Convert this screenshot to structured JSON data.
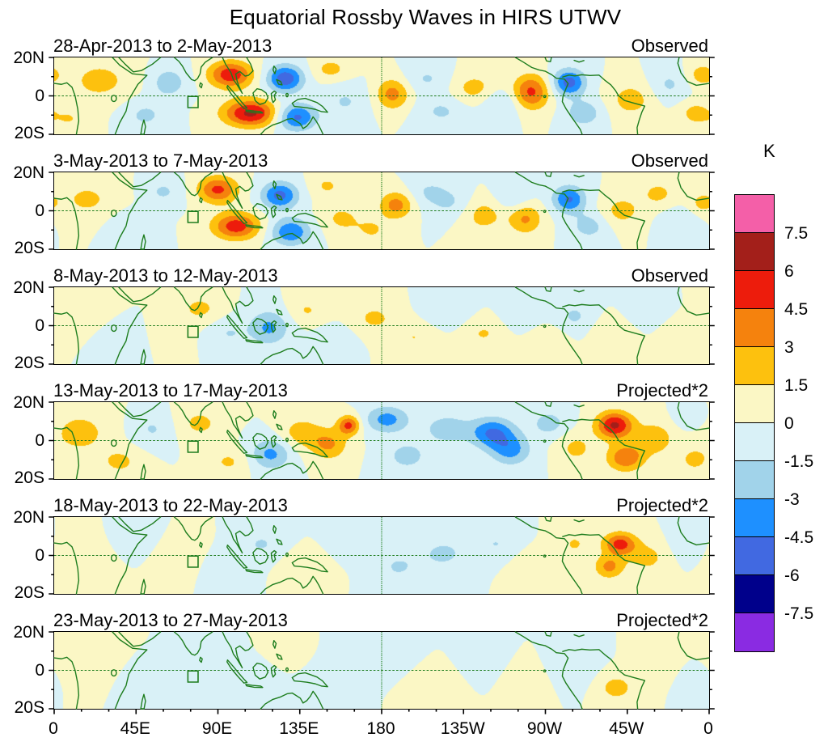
{
  "chart_data": {
    "type": "heatmap",
    "title": "Equatorial Rossby Waves in HIRS UTWV",
    "units_label": "K",
    "x_tick_labels": [
      "0",
      "45E",
      "90E",
      "135E",
      "180",
      "135W",
      "90W",
      "45W",
      "0"
    ],
    "y_tick_labels": [
      "20N",
      "0",
      "20S"
    ],
    "lon_range_deg": [
      0,
      360
    ],
    "lat_range_deg": [
      -20,
      20
    ],
    "contour_levels_K": [
      -7.5,
      -6,
      -4.5,
      -3,
      -1.5,
      0,
      1.5,
      3,
      4.5,
      6,
      7.5
    ],
    "colorbar_tick_labels": [
      "7.5",
      "6",
      "4.5",
      "3",
      "1.5",
      "0",
      "-1.5",
      "-3",
      "-4.5",
      "-6",
      "-7.5"
    ],
    "palette_neg_to_pos": [
      "#8a2be2",
      "#00008b",
      "#4169e1",
      "#1e90ff",
      "#a1d3ea",
      "#d9f1f7",
      "#fbf7c5",
      "#fdc10e",
      "#f5820d",
      "#ed1c0c",
      "#a31f1a",
      "#f45fa8"
    ],
    "colors": {
      "coastline_green": "#1e7d1e",
      "axis_black": "#000000",
      "background": "#ffffff"
    },
    "anomaly_format": "[lon_deg_east, lat_deg, lon_radius_deg, lat_radius_deg, amplitude_K]",
    "panels": [
      {
        "label": "28-Apr-2013 to 2-May-2013",
        "tag": "Observed",
        "anomalies": [
          [
            25,
            8,
            18,
            11,
            2.0
          ],
          [
            8,
            -12,
            12,
            8,
            1.5
          ],
          [
            50,
            -10,
            12,
            8,
            -1.8
          ],
          [
            63,
            7,
            10,
            8,
            -2.4
          ],
          [
            97,
            11,
            12,
            7,
            5.6
          ],
          [
            108,
            -9,
            15,
            7,
            6.4
          ],
          [
            127,
            9,
            10,
            7,
            -5.6
          ],
          [
            133,
            -11,
            11,
            7,
            -5.0
          ],
          [
            152,
            14,
            10,
            6,
            2.0
          ],
          [
            160,
            -3,
            12,
            9,
            -1.6
          ],
          [
            186,
            1,
            9,
            8,
            3.6
          ],
          [
            205,
            9,
            12,
            7,
            -1.6
          ],
          [
            213,
            -8,
            13,
            8,
            -1.7
          ],
          [
            231,
            4,
            12,
            8,
            2.1
          ],
          [
            246,
            -4,
            11,
            8,
            -1.8
          ],
          [
            262,
            2,
            10,
            9,
            4.9
          ],
          [
            283,
            7,
            9,
            7,
            -5.2
          ],
          [
            291,
            -9,
            10,
            7,
            -2.6
          ],
          [
            317,
            -2,
            12,
            9,
            2.2
          ],
          [
            338,
            6,
            10,
            8,
            -1.7
          ],
          [
            352,
            -9,
            8,
            6,
            2.0
          ],
          [
            356,
            11,
            8,
            6,
            2.2
          ]
        ]
      },
      {
        "label": "3-May-2013 to 7-May-2013",
        "tag": "Observed",
        "anomalies": [
          [
            18,
            6,
            16,
            10,
            1.8
          ],
          [
            42,
            -9,
            11,
            8,
            -1.5
          ],
          [
            60,
            10,
            10,
            7,
            -1.7
          ],
          [
            90,
            11,
            11,
            7,
            4.9
          ],
          [
            100,
            -8,
            13,
            7,
            5.4
          ],
          [
            124,
            8,
            10,
            7,
            -5.0
          ],
          [
            130,
            -11,
            11,
            7,
            -4.4
          ],
          [
            150,
            13,
            9,
            6,
            1.7
          ],
          [
            158,
            -4,
            11,
            8,
            1.8
          ],
          [
            175,
            -10,
            10,
            7,
            1.6
          ],
          [
            188,
            3,
            9,
            7,
            3.7
          ],
          [
            206,
            10,
            11,
            7,
            -1.5
          ],
          [
            218,
            4,
            12,
            8,
            -1.6
          ],
          [
            236,
            -2,
            12,
            9,
            2.2
          ],
          [
            252,
            7,
            10,
            8,
            -1.7
          ],
          [
            259,
            -4,
            9,
            8,
            3.3
          ],
          [
            283,
            6,
            9,
            7,
            -4.7
          ],
          [
            294,
            -8,
            10,
            7,
            -2.2
          ],
          [
            312,
            0,
            11,
            8,
            2.1
          ],
          [
            332,
            9,
            10,
            7,
            1.9
          ],
          [
            344,
            -6,
            10,
            7,
            -1.5
          ],
          [
            356,
            4,
            7,
            6,
            1.8
          ]
        ]
      },
      {
        "label": "8-May-2013 to 12-May-2013",
        "tag": "Observed",
        "anomalies": [
          [
            14,
            7,
            14,
            9,
            1.5
          ],
          [
            38,
            -6,
            12,
            8,
            -1.3
          ],
          [
            62,
            -3,
            10,
            8,
            1.3
          ],
          [
            80,
            9,
            11,
            7,
            1.9
          ],
          [
            96,
            -4,
            10,
            7,
            -1.5
          ],
          [
            118,
            -1,
            11,
            9,
            -3.3
          ],
          [
            139,
            8,
            10,
            7,
            1.6
          ],
          [
            154,
            -8,
            10,
            7,
            -1.4
          ],
          [
            176,
            4,
            12,
            8,
            1.8
          ],
          [
            198,
            -6,
            12,
            8,
            1.5
          ],
          [
            216,
            7,
            12,
            8,
            -1.4
          ],
          [
            236,
            -4,
            12,
            8,
            1.6
          ],
          [
            256,
            6,
            10,
            8,
            -1.4
          ],
          [
            271,
            -8,
            10,
            7,
            1.4
          ],
          [
            286,
            5,
            10,
            8,
            -1.7
          ],
          [
            306,
            -5,
            10,
            8,
            1.5
          ],
          [
            326,
            8,
            10,
            7,
            -1.3
          ],
          [
            346,
            -4,
            10,
            7,
            1.4
          ]
        ]
      },
      {
        "label": "13-May-2013 to 17-May-2013",
        "tag": "Projected*2",
        "anomalies": [
          [
            14,
            4,
            16,
            11,
            2.2
          ],
          [
            36,
            -11,
            11,
            7,
            1.9
          ],
          [
            54,
            6,
            11,
            8,
            -1.6
          ],
          [
            80,
            9,
            12,
            8,
            1.9
          ],
          [
            96,
            -11,
            11,
            7,
            1.7
          ],
          [
            119,
            -7,
            11,
            8,
            -3.4
          ],
          [
            136,
            4,
            11,
            8,
            2.4
          ],
          [
            151,
            -2,
            10,
            8,
            3.2
          ],
          [
            162,
            8,
            6,
            5,
            4.9
          ],
          [
            183,
            11,
            12,
            7,
            -3.6
          ],
          [
            194,
            -8,
            12,
            8,
            -2.1
          ],
          [
            216,
            6,
            13,
            8,
            -2.4
          ],
          [
            241,
            4,
            12,
            8,
            -4.6
          ],
          [
            251,
            -5,
            11,
            8,
            -3.4
          ],
          [
            272,
            9,
            10,
            7,
            -2.2
          ],
          [
            287,
            -4,
            10,
            8,
            1.9
          ],
          [
            308,
            8,
            10,
            7,
            6.3
          ],
          [
            314,
            -9,
            10,
            7,
            4.3
          ],
          [
            330,
            1,
            11,
            9,
            2.5
          ],
          [
            350,
            12,
            9,
            6,
            -1.4
          ],
          [
            352,
            -10,
            9,
            7,
            1.9
          ]
        ]
      },
      {
        "label": "18-May-2013 to 22-May-2013",
        "tag": "Projected*2",
        "anomalies": [
          [
            14,
            1,
            15,
            10,
            1.4
          ],
          [
            44,
            9,
            12,
            8,
            -1.2
          ],
          [
            69,
            0,
            12,
            9,
            1.5
          ],
          [
            94,
            -6,
            12,
            8,
            -1.3
          ],
          [
            114,
            6,
            12,
            8,
            -1.6
          ],
          [
            139,
            -6,
            12,
            8,
            1.5
          ],
          [
            164,
            6,
            12,
            8,
            -1.4
          ],
          [
            189,
            -6,
            13,
            9,
            -1.6
          ],
          [
            214,
            1,
            14,
            9,
            -1.8
          ],
          [
            243,
            6,
            12,
            8,
            -1.5
          ],
          [
            264,
            -6,
            11,
            8,
            1.5
          ],
          [
            286,
            6,
            10,
            8,
            1.6
          ],
          [
            311,
            6,
            9,
            6,
            5.1
          ],
          [
            305,
            -6,
            8,
            6,
            3.4
          ],
          [
            326,
            -1,
            11,
            8,
            2.0
          ],
          [
            349,
            6,
            10,
            8,
            -1.2
          ]
        ]
      },
      {
        "label": "23-May-2013 to 27-May-2013",
        "tag": "Projected*2",
        "anomalies": [
          [
            19,
            4,
            15,
            10,
            1.3
          ],
          [
            49,
            -6,
            12,
            9,
            -1.1
          ],
          [
            79,
            4,
            12,
            9,
            -1.3
          ],
          [
            109,
            -6,
            12,
            8,
            -1.4
          ],
          [
            131,
            9,
            10,
            7,
            1.2
          ],
          [
            154,
            -1,
            14,
            10,
            -1.3
          ],
          [
            184,
            6,
            14,
            9,
            -1.2
          ],
          [
            209,
            -6,
            14,
            9,
            1.3
          ],
          [
            234,
            4,
            12,
            9,
            -1.2
          ],
          [
            259,
            -6,
            12,
            9,
            1.2
          ],
          [
            284,
            1,
            12,
            9,
            -1.3
          ],
          [
            309,
            -9,
            10,
            7,
            2.2
          ],
          [
            331,
            4,
            10,
            8,
            1.4
          ],
          [
            352,
            -6,
            8,
            7,
            -1.1
          ]
        ]
      }
    ]
  }
}
